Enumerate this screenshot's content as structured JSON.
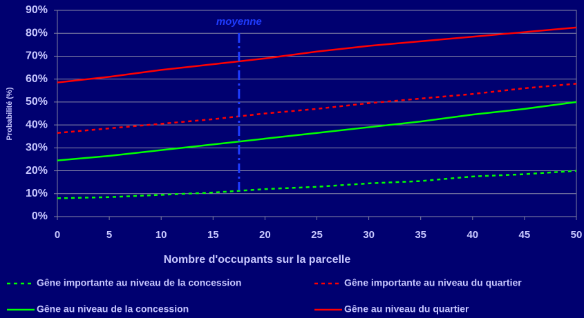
{
  "chart_data": {
    "type": "line",
    "x_label": "Nombre d'occupants sur la parcelle",
    "y_label": "Probabilité (%)",
    "x": [
      0,
      5,
      10,
      15,
      20,
      25,
      30,
      35,
      40,
      45,
      50
    ],
    "series": [
      {
        "name": "Gêne importante au niveau de la concession",
        "color": "#00ff00",
        "dashed": true,
        "values": [
          8,
          8.5,
          9.5,
          10.5,
          12,
          13,
          14.5,
          15.5,
          17.5,
          18.5,
          20
        ]
      },
      {
        "name": "Gêne importante au niveau du quartier",
        "color": "#ff0000",
        "dashed": true,
        "values": [
          36.5,
          38.5,
          40.5,
          42.5,
          45,
          47,
          49.5,
          51.5,
          53.5,
          56,
          58
        ]
      },
      {
        "name": "Gêne au niveau de la concession",
        "color": "#00ff00",
        "dashed": false,
        "values": [
          24.5,
          26.5,
          29,
          31.5,
          34,
          36.5,
          39,
          41.5,
          44.5,
          47,
          50
        ]
      },
      {
        "name": "Gêne au niveau du quartier",
        "color": "#ff0000",
        "dashed": false,
        "values": [
          58.5,
          61,
          64,
          66.5,
          69,
          72,
          74.5,
          76.5,
          78.5,
          80.5,
          82.5
        ]
      }
    ],
    "annotation": {
      "text": "moyenne",
      "x": 17.5,
      "color": "#1f3cff"
    },
    "xlim": [
      0,
      50
    ],
    "xticks": [
      0,
      5,
      10,
      15,
      20,
      25,
      30,
      35,
      40,
      45,
      50
    ],
    "ylim": [
      0,
      90
    ],
    "yticks": [
      {
        "value": 0,
        "label": "0%"
      },
      {
        "value": 10,
        "label": "10%"
      },
      {
        "value": 20,
        "label": "20%"
      },
      {
        "value": 30,
        "label": "30%"
      },
      {
        "value": 40,
        "label": "40%"
      },
      {
        "value": 50,
        "label": "50%"
      },
      {
        "value": 60,
        "label": "60%"
      },
      {
        "value": 70,
        "label": "70%"
      },
      {
        "value": 80,
        "label": "80%"
      },
      {
        "value": 90,
        "label": "90%"
      }
    ],
    "grid": true
  }
}
